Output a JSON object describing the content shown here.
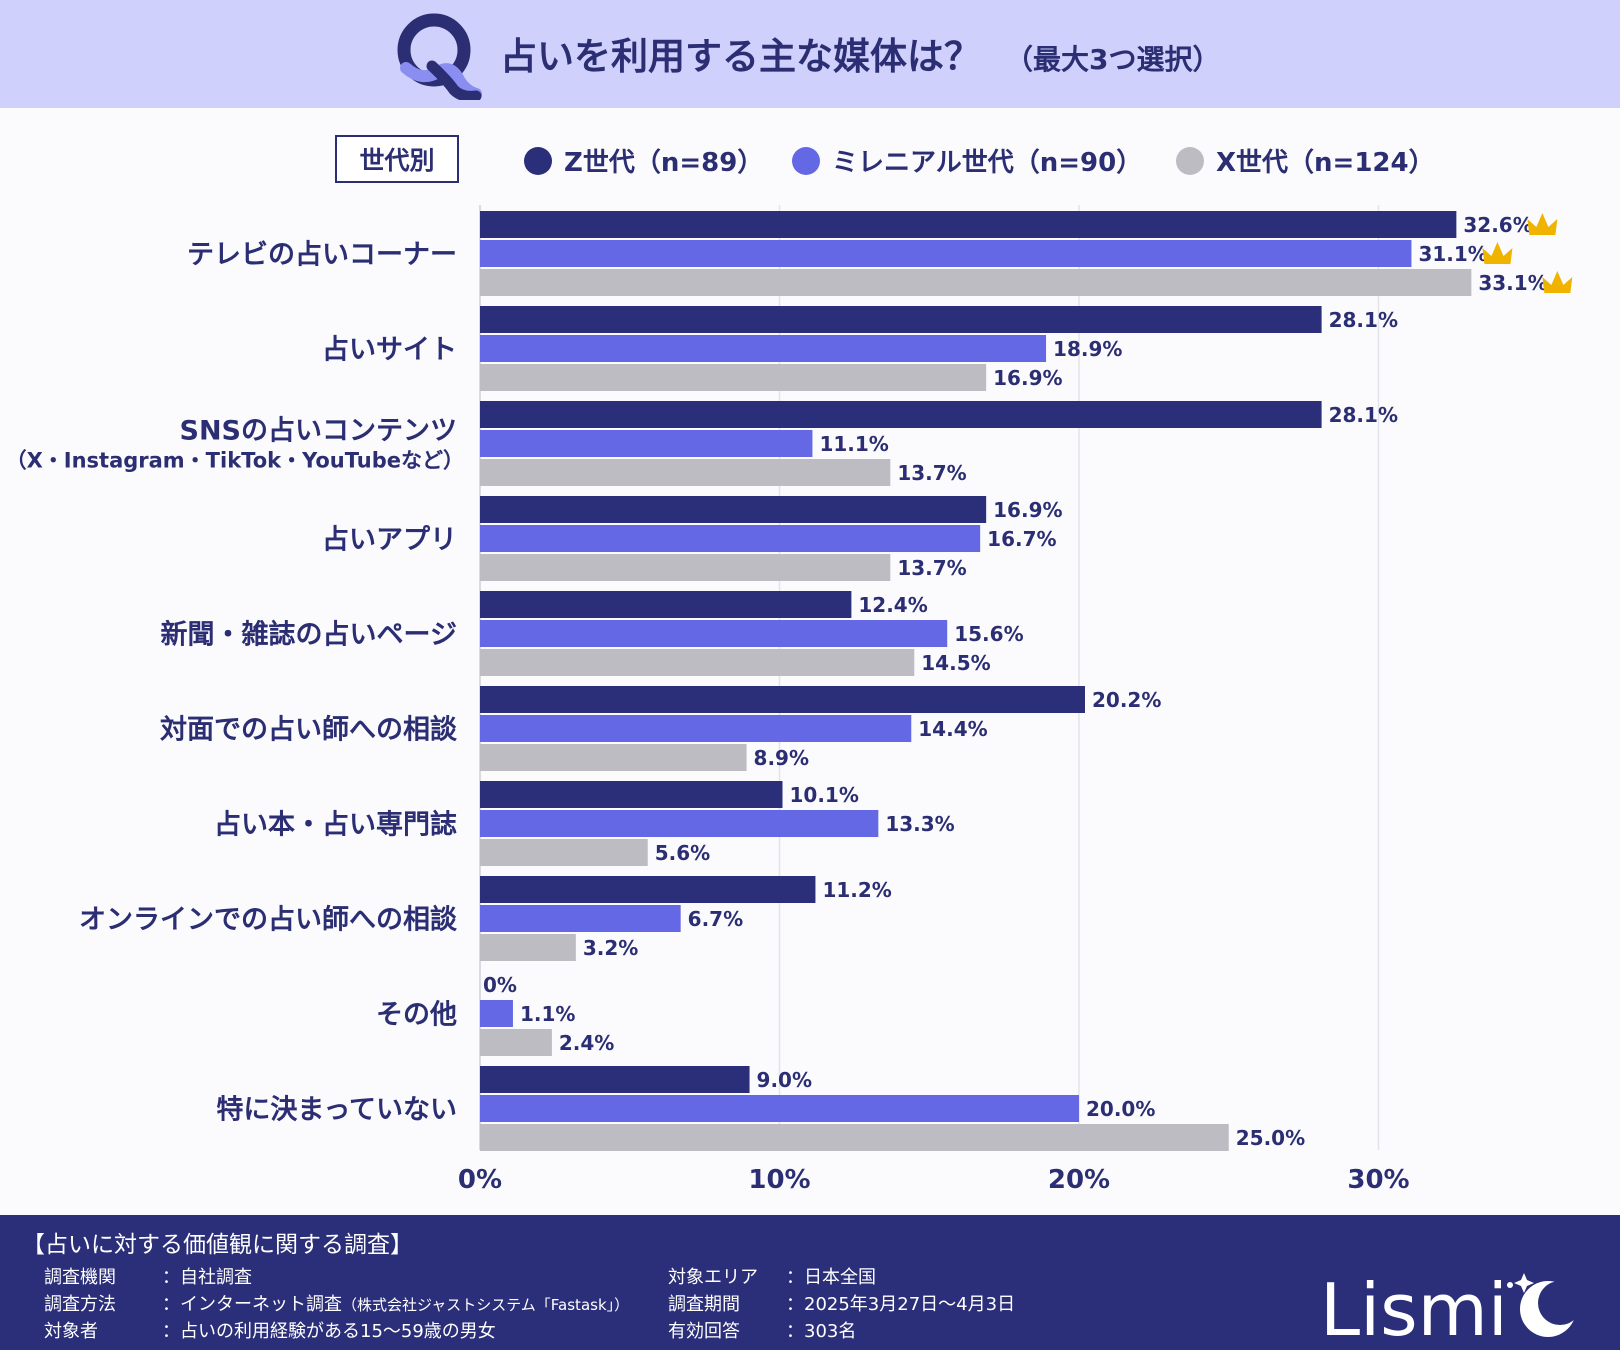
{
  "header": {
    "title": "占いを利用する主な媒体は？",
    "note": "（最大3つ選択）",
    "q_icon": "q-letter-icon"
  },
  "legend": {
    "group_label": "世代別",
    "series": [
      {
        "label": "Z世代（n=89）",
        "color": "#2b2e78"
      },
      {
        "label": "ミレニアル世代（n=90）",
        "color": "#6468e4"
      },
      {
        "label": "X世代（n=124）",
        "color": "#bcbcc2"
      }
    ]
  },
  "chart_data": {
    "type": "bar",
    "orientation": "horizontal",
    "title": "占いを利用する主な媒体は？",
    "unit": "%",
    "xlim": [
      0,
      35
    ],
    "xticks": [
      0,
      10,
      20,
      30
    ],
    "xtick_labels": [
      "0%",
      "10%",
      "20%",
      "30%"
    ],
    "categories": [
      [
        "テレビの占いコーナー"
      ],
      [
        "占いサイト"
      ],
      [
        "SNSの占いコンテンツ",
        "（X・Instagram・TikTok・YouTubeなど）"
      ],
      [
        "占いアプリ"
      ],
      [
        "新聞・雑誌の占いページ"
      ],
      [
        "対面での占い師への相談"
      ],
      [
        "占い本・占い専門誌"
      ],
      [
        "オンラインでの占い師への相談"
      ],
      [
        "その他"
      ],
      [
        "特に決まっていない"
      ]
    ],
    "series": [
      {
        "name": "Z世代（n=89）",
        "color": "#2b2e78",
        "values": [
          32.6,
          28.1,
          28.1,
          16.9,
          12.4,
          20.2,
          10.1,
          11.2,
          0,
          9.0
        ],
        "labels": [
          "32.6%",
          "28.1%",
          "28.1%",
          "16.9%",
          "12.4%",
          "20.2%",
          "10.1%",
          "11.2%",
          "0%",
          "9.0%"
        ]
      },
      {
        "name": "ミレニアル世代（n=90）",
        "color": "#6468e4",
        "values": [
          31.1,
          18.9,
          11.1,
          16.7,
          15.6,
          14.4,
          13.3,
          6.7,
          1.1,
          20.0
        ],
        "labels": [
          "31.1%",
          "18.9%",
          "11.1%",
          "16.7%",
          "15.6%",
          "14.4%",
          "13.3%",
          "6.7%",
          "1.1%",
          "20.0%"
        ]
      },
      {
        "name": "X世代（n=124）",
        "color": "#bcbcc2",
        "values": [
          33.1,
          16.9,
          13.7,
          13.7,
          14.5,
          8.9,
          5.6,
          3.2,
          2.4,
          25.0
        ],
        "labels": [
          "33.1%",
          "16.9%",
          "13.7%",
          "13.7%",
          "14.5%",
          "8.9%",
          "5.6%",
          "3.2%",
          "2.4%",
          "25.0%"
        ]
      }
    ],
    "top_marker": {
      "category_index": 0,
      "icon": "crown-icon",
      "color": "#f0b400"
    }
  },
  "footer": {
    "survey_title": "【占いに対する価値観に関する調査】",
    "rows_left": [
      {
        "key": "調査機関",
        "value": "：自社調査",
        "note": ""
      },
      {
        "key": "調査方法",
        "value": "：インターネット調査",
        "note": "（株式会社ジャストシステム「Fastask」）"
      },
      {
        "key": "対象者",
        "value": "：占いの利用経験がある15～59歳の男女",
        "note": ""
      }
    ],
    "rows_right": [
      {
        "key": "対象エリア",
        "value": "：日本全国"
      },
      {
        "key": "調査期間",
        "value": "：2025年3月27日～4月3日"
      },
      {
        "key": "有効回答",
        "value": "：303名"
      }
    ],
    "logo_text": "Lismi"
  }
}
